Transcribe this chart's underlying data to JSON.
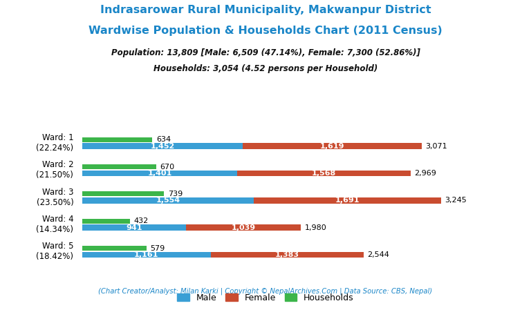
{
  "title_line1": "Indrasarowar Rural Municipality, Makwanpur District",
  "title_line2": "Wardwise Population & Households Chart (2011 Census)",
  "subtitle_line1": "Population: 13,809 [Male: 6,509 (47.14%), Female: 7,300 (52.86%)]",
  "subtitle_line2": "Households: 3,054 (4.52 persons per Household)",
  "footer": "(Chart Creator/Analyst: Milan Karki | Copyright © NepalArchives.Com | Data Source: CBS, Nepal)",
  "wards": [
    {
      "label": "Ward: 1\n(22.24%)",
      "male": 1452,
      "female": 1619,
      "households": 634,
      "total": 3071
    },
    {
      "label": "Ward: 2\n(21.50%)",
      "male": 1401,
      "female": 1568,
      "households": 670,
      "total": 2969
    },
    {
      "label": "Ward: 3\n(23.50%)",
      "male": 1554,
      "female": 1691,
      "households": 739,
      "total": 3245
    },
    {
      "label": "Ward: 4\n(14.34%)",
      "male": 941,
      "female": 1039,
      "households": 432,
      "total": 1980
    },
    {
      "label": "Ward: 5\n(18.42%)",
      "male": 1161,
      "female": 1383,
      "households": 579,
      "total": 2544
    }
  ],
  "color_male": "#3a9fd5",
  "color_female": "#c94c30",
  "color_households": "#3cb54a",
  "title_color": "#1a86c8",
  "subtitle_color": "#111111",
  "footer_color": "#1a86c8",
  "background_color": "#ffffff"
}
